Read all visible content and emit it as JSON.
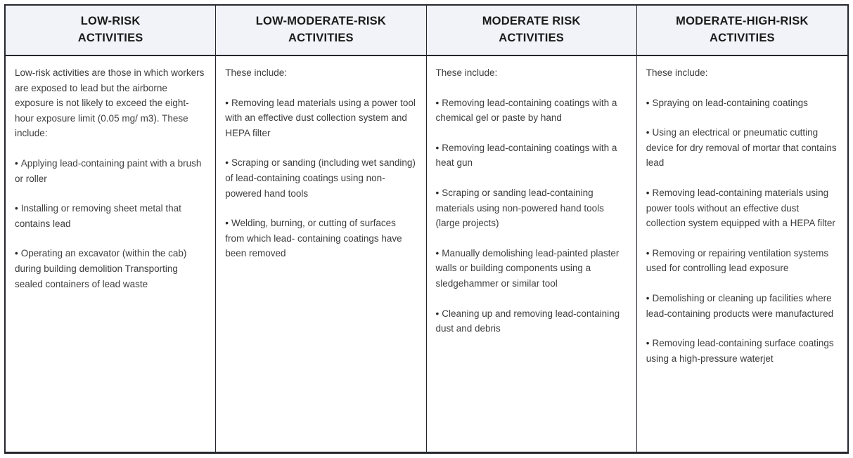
{
  "bullet_char": "•",
  "colors": {
    "header_bg": "#f2f3f8",
    "border": "#26262e",
    "header_text": "#1b1b1b",
    "body_text": "#3d3d3d"
  },
  "columns": [
    {
      "id": "low-risk",
      "title_lines": [
        "LOW-RISK",
        "ACTIVITIES"
      ],
      "intro": "Low-risk activities are those in which workers are exposed to lead but the airborne exposure is not likely to exceed the eight-hour exposure limit (0.05 mg/ m3). These include:",
      "bullets": [
        "Applying lead-containing paint with a brush or roller",
        "Installing or removing sheet metal that contains lead",
        "Operating an excavator (within the cab) during building demolition Transporting sealed containers of lead waste"
      ]
    },
    {
      "id": "low-moderate-risk",
      "title_lines": [
        "LOW-MODERATE-RISK",
        "ACTIVITIES"
      ],
      "intro": "These include:",
      "bullets": [
        "Removing lead materials using a power tool with an effective dust collection system and HEPA filter",
        "Scraping or sanding (including wet sanding) of lead-containing coatings using non-powered hand tools",
        "Welding, burning, or cutting of surfaces from which lead- containing coatings have been removed"
      ]
    },
    {
      "id": "moderate-risk",
      "title_lines": [
        "MODERATE RISK",
        "ACTIVITIES"
      ],
      "intro": "These include:",
      "bullets": [
        "Removing lead-containing coatings with a chemical gel or paste by hand",
        "Removing lead-containing coatings with a heat gun",
        "Scraping or sanding lead-containing materials using non-powered hand tools (large projects)",
        "Manually demolishing lead-painted plaster walls or building components using a sledgehammer or similar tool",
        "Cleaning up and removing lead-containing dust and debris"
      ]
    },
    {
      "id": "moderate-high-risk",
      "title_lines": [
        "MODERATE-HIGH-RISK",
        "ACTIVITIES"
      ],
      "intro": "These include:",
      "bullets": [
        "Spraying on lead-containing coatings",
        "Using an electrical or pneumatic cutting device for dry removal of mortar that contains lead",
        "Removing lead-containing materials using power tools without an effective dust collection system equipped with a HEPA filter",
        "Removing or repairing ventilation systems used for controlling lead exposure",
        "Demolishing or cleaning up facilities where lead-containing products were manufactured",
        "Removing lead-containing surface coatings using a high-pressure waterjet"
      ]
    }
  ]
}
